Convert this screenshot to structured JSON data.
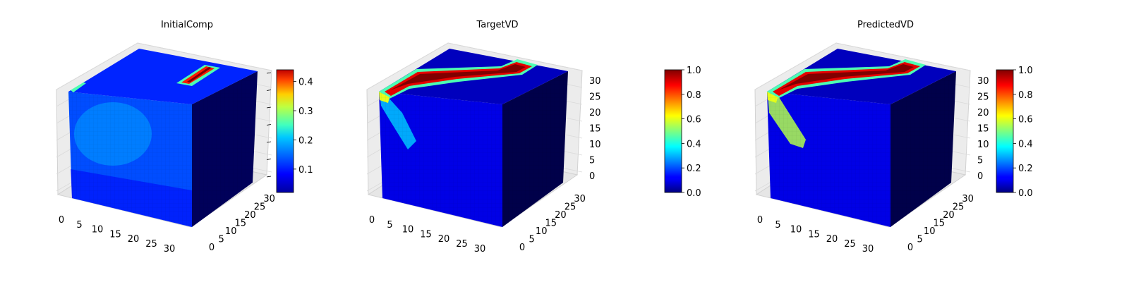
{
  "chart_data": [
    {
      "type": "voxel-3d",
      "title": "InitialComp",
      "dims": [
        32,
        32,
        32
      ],
      "x_ticks": [
        "0",
        "5",
        "10",
        "15",
        "20",
        "25",
        "30"
      ],
      "y_ticks": [
        "0",
        "5",
        "10",
        "15",
        "20",
        "25",
        "30"
      ],
      "z_ticks": [],
      "colormap": "jet",
      "colorbar": {
        "vmin": 0.02,
        "vmax": 0.44,
        "ticks": [
          "0.1",
          "0.2",
          "0.3",
          "0.4"
        ],
        "tick_values": [
          0.1,
          0.2,
          0.3,
          0.4
        ]
      },
      "features": {
        "top_hotspot": {
          "description_value_max": 0.44,
          "x_range": [
            19,
            27
          ],
          "y_range": [
            27,
            31
          ]
        },
        "front_blob": {
          "value": 0.12
        },
        "background_value": 0.05
      }
    },
    {
      "type": "voxel-3d",
      "title": "TargetVD",
      "dims": [
        32,
        32,
        32
      ],
      "x_ticks": [
        "0",
        "5",
        "10",
        "15",
        "20",
        "25",
        "30"
      ],
      "y_ticks": [
        "0",
        "5",
        "10",
        "15",
        "20",
        "25",
        "30"
      ],
      "z_ticks": [
        "0",
        "5",
        "10",
        "15",
        "20",
        "25",
        "30"
      ],
      "colormap": "jet",
      "colorbar": {
        "vmin": 0.0,
        "vmax": 1.0,
        "ticks": [
          "0.0",
          "0.2",
          "0.4",
          "0.6",
          "0.8",
          "1.0"
        ],
        "tick_values": [
          0.0,
          0.2,
          0.4,
          0.6,
          0.8,
          1.0
        ]
      },
      "features": {
        "top_band_value": 1.0,
        "front_streak_value": 0.3,
        "background_value": 0.03
      }
    },
    {
      "type": "voxel-3d",
      "title": "PredictedVD",
      "dims": [
        32,
        32,
        32
      ],
      "x_ticks": [
        "0",
        "5",
        "10",
        "15",
        "20",
        "25",
        "30"
      ],
      "y_ticks": [
        "0",
        "5",
        "10",
        "15",
        "20",
        "25",
        "30"
      ],
      "z_ticks": [
        "0",
        "5",
        "10",
        "15",
        "20",
        "25",
        "30"
      ],
      "colormap": "jet",
      "colorbar": {
        "vmin": 0.0,
        "vmax": 1.0,
        "ticks": [
          "0.0",
          "0.2",
          "0.4",
          "0.6",
          "0.8",
          "1.0"
        ],
        "tick_values": [
          0.0,
          0.2,
          0.4,
          0.6,
          0.8,
          1.0
        ]
      },
      "features": {
        "top_band_value": 1.0,
        "front_streak_value": 0.55,
        "background_value": 0.03
      }
    }
  ]
}
